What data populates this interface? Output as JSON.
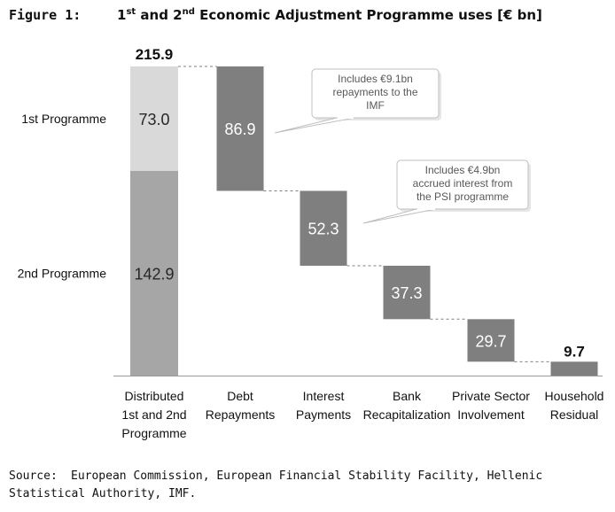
{
  "figure": {
    "label": "Figure 1:",
    "title_parts": [
      "1",
      "st",
      " and 2",
      "nd",
      " Economic Adjustment Programme uses [€ bn]"
    ]
  },
  "chart_data": {
    "type": "waterfall",
    "title": "1st and 2nd Economic Adjustment Programme uses [€ bn]",
    "unit": "€ bn",
    "total": {
      "label": "215.9",
      "value": 215.9
    },
    "stacked_bar": {
      "category_lines": [
        "Distributed",
        "1st and 2nd",
        "Programme"
      ],
      "segments": [
        {
          "name": "2nd Programme",
          "value": 142.9,
          "label": "142.9"
        },
        {
          "name": "1st Programme",
          "value": 73.0,
          "label": "73.0"
        }
      ]
    },
    "steps": [
      {
        "category_lines": [
          "Debt",
          "Repayments"
        ],
        "value": 86.9,
        "label": "86.9"
      },
      {
        "category_lines": [
          "Interest",
          "Payments"
        ],
        "value": 52.3,
        "label": "52.3"
      },
      {
        "category_lines": [
          "Bank",
          "Recapitalization"
        ],
        "value": 37.3,
        "label": "37.3"
      },
      {
        "category_lines": [
          "Private Sector",
          "Involvement"
        ],
        "value": 29.7,
        "label": "29.7"
      },
      {
        "category_lines": [
          "Household",
          "Residual"
        ],
        "value": 9.7,
        "label": "9.7"
      }
    ],
    "annotations": [
      {
        "target": "Debt Repayments",
        "lines": [
          "Includes €9.1bn",
          "repayments to the",
          "IMF"
        ]
      },
      {
        "target": "Interest Payments",
        "lines": [
          "Includes €4.9bn",
          "accrued interest from",
          "the PSI programme"
        ]
      }
    ],
    "colors": {
      "first_programme": "#d9d9d9",
      "second_programme": "#a6a6a6",
      "step": "#7f7f7f",
      "connector": "#7f7f7f",
      "callout_border": "#bfbfbf",
      "callout_text": "#595959"
    }
  },
  "source": {
    "label": "Source:",
    "text": "European Commission, European Financial Stability Facility, Hellenic Statistical Authority, IMF."
  }
}
